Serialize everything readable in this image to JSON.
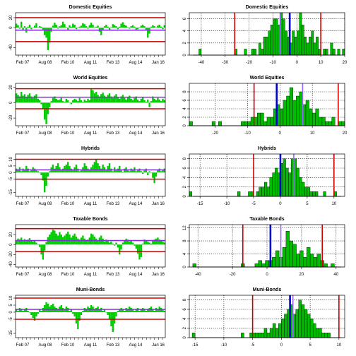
{
  "chart_data": [
    {
      "type": "bar",
      "panel": "timeseries",
      "title": "Domestic Equities",
      "x_tick_labels": [
        "Feb 07",
        "Aug 08",
        "Feb 10",
        "Aug 11",
        "Feb 13",
        "Aug 14",
        "Jan 16"
      ],
      "y_tick_labels": [
        "20",
        "0",
        "-40"
      ],
      "ylim": [
        -55,
        30
      ],
      "horizontal_lines": [
        {
          "y": 20,
          "color": "#cc0000"
        },
        {
          "y": -28,
          "color": "#cc0000"
        },
        {
          "y": -5,
          "color": "#8a2be2"
        }
      ],
      "bar_color": "#00cc00",
      "values": [
        8,
        5,
        -2,
        12,
        -5,
        3,
        -10,
        2,
        6,
        -3,
        0,
        4,
        9,
        -1,
        3,
        2,
        -6,
        -15,
        -20,
        -45,
        -30,
        -8,
        4,
        10,
        6,
        -2,
        3,
        5,
        12,
        7,
        1,
        -4,
        5,
        2,
        8,
        6,
        -3,
        -1,
        2,
        4,
        9,
        7,
        3,
        -2,
        5,
        10,
        6,
        -1,
        2,
        4,
        -8,
        -15,
        -5,
        3,
        6,
        2,
        -4,
        1,
        7,
        5,
        3,
        -3,
        2,
        8,
        11,
        6,
        4,
        1,
        -2,
        3,
        5,
        2,
        -6,
        -3,
        1,
        4,
        6,
        3,
        -5,
        -20,
        -12,
        2,
        5,
        3,
        -1,
        4,
        6,
        2,
        -3,
        5
      ]
    },
    {
      "type": "bar",
      "panel": "histogram",
      "title": "Domestic Equities",
      "x_tick_labels": [
        "-40",
        "-30",
        "-20",
        "-10",
        "0",
        "10",
        "20"
      ],
      "y_tick_labels": [
        "0",
        "2",
        "4",
        "6"
      ],
      "xlim": [
        -45,
        20
      ],
      "ylim": [
        0,
        7
      ],
      "bins_start": -45,
      "bin_width": 1,
      "counts": [
        0,
        0,
        0,
        0,
        1,
        0,
        0,
        0,
        0,
        0,
        0,
        0,
        0,
        0,
        0,
        0,
        0,
        0,
        0,
        1,
        0,
        0,
        0,
        1,
        0,
        0,
        1,
        1,
        0,
        2,
        1,
        3,
        3,
        4,
        5,
        6,
        6,
        5,
        7,
        6,
        4,
        3,
        2,
        4,
        3,
        4,
        7,
        5,
        3,
        2,
        3,
        4,
        2,
        3,
        1,
        0,
        1,
        1,
        0,
        2,
        1,
        0,
        1,
        0,
        1
      ],
      "vlines": [
        {
          "x": -26,
          "color": "#cc0000"
        },
        {
          "x": 10,
          "color": "#cc0000"
        },
        {
          "x": -7,
          "color": "#9966ff"
        },
        {
          "x": -3,
          "color": "#0000cc"
        }
      ]
    },
    {
      "type": "bar",
      "panel": "timeseries",
      "title": "World Equities",
      "x_tick_labels": [
        "Feb 07",
        "Aug 08",
        "Feb 10",
        "Aug 11",
        "Feb 13",
        "Aug 14",
        "Jan 16"
      ],
      "y_tick_labels": [
        "20",
        "0",
        "-20"
      ],
      "ylim": [
        -30,
        25
      ],
      "horizontal_lines": [
        {
          "y": 18,
          "color": "#cc0000"
        },
        {
          "y": -8,
          "color": "#cc0000"
        },
        {
          "y": 7,
          "color": "#8a2be2"
        }
      ],
      "bar_color": "#00cc00",
      "values": [
        12,
        10,
        8,
        14,
        9,
        11,
        7,
        10,
        12,
        8,
        6,
        9,
        11,
        5,
        3,
        -2,
        -8,
        -22,
        -28,
        -15,
        -6,
        2,
        6,
        8,
        5,
        3,
        4,
        6,
        2,
        1,
        5,
        3,
        0,
        -2,
        3,
        5,
        4,
        2,
        6,
        3,
        1,
        4,
        2,
        5,
        3,
        18,
        16,
        12,
        14,
        10,
        8,
        11,
        13,
        9,
        7,
        10,
        12,
        8,
        6,
        9,
        11,
        7,
        5,
        8,
        10,
        6,
        4,
        7,
        9,
        5,
        3,
        6,
        8,
        4,
        2,
        5,
        7,
        3,
        1,
        4,
        -6,
        2,
        8,
        5,
        3,
        6,
        4,
        2,
        5,
        3
      ]
    },
    {
      "type": "bar",
      "panel": "histogram",
      "title": "World Equities",
      "x_tick_labels": [
        "-20",
        "-10",
        "0",
        "10",
        "20"
      ],
      "y_tick_labels": [
        "0",
        "2",
        "4",
        "6",
        "8"
      ],
      "xlim": [
        -28,
        20
      ],
      "ylim": [
        0,
        10
      ],
      "bins_start": -28,
      "bin_width": 1,
      "counts": [
        1,
        0,
        0,
        0,
        0,
        0,
        0,
        1,
        0,
        1,
        0,
        0,
        0,
        0,
        0,
        0,
        1,
        1,
        1,
        2,
        2,
        3,
        3,
        1,
        2,
        2,
        4,
        5,
        4,
        6,
        7,
        9,
        6,
        7,
        8,
        5,
        6,
        4,
        3,
        4,
        2,
        2,
        1,
        1,
        2,
        0,
        1,
        1
      ],
      "vlines": [
        {
          "x": -8,
          "color": "#cc0000"
        },
        {
          "x": 18,
          "color": "#cc0000"
        },
        {
          "x": 7,
          "color": "#9966ff"
        },
        {
          "x": -1,
          "color": "#0000cc"
        }
      ]
    },
    {
      "type": "bar",
      "panel": "timeseries",
      "title": "Hybrids",
      "x_tick_labels": [
        "Feb 07",
        "Aug 08",
        "Feb 10",
        "Aug 11",
        "Feb 13",
        "Aug 14",
        "Jan 16"
      ],
      "y_tick_labels": [
        "10",
        "5",
        "0",
        "-5",
        "-15"
      ],
      "ylim": [
        -18,
        14
      ],
      "horizontal_lines": [
        {
          "y": 10,
          "color": "#cc0000"
        },
        {
          "y": -5,
          "color": "#cc0000"
        },
        {
          "y": 2,
          "color": "#8a2be2"
        }
      ],
      "bar_color": "#00cc00",
      "values": [
        3,
        2,
        4,
        1,
        3,
        2,
        5,
        3,
        1,
        2,
        4,
        3,
        2,
        1,
        0,
        -2,
        -6,
        -15,
        -10,
        -3,
        1,
        4,
        6,
        3,
        5,
        7,
        4,
        2,
        3,
        5,
        6,
        8,
        5,
        3,
        2,
        4,
        6,
        3,
        1,
        2,
        4,
        7,
        5,
        3,
        2,
        4,
        6,
        8,
        10,
        7,
        5,
        3,
        6,
        4,
        2,
        5,
        7,
        3,
        1,
        4,
        2,
        3,
        5,
        2,
        0,
        3,
        4,
        2,
        1,
        3,
        2,
        4,
        1,
        2,
        3,
        1,
        -1,
        2,
        3,
        -2,
        1,
        0,
        -4,
        -8,
        -3,
        2,
        3,
        1,
        2,
        3
      ]
    },
    {
      "type": "bar",
      "panel": "histogram",
      "title": "Hybrids",
      "x_tick_labels": [
        "-15",
        "-10",
        "-5",
        "0",
        "5",
        "10"
      ],
      "y_tick_labels": [
        "0",
        "2",
        "4",
        "6",
        "8"
      ],
      "xlim": [
        -17,
        12
      ],
      "ylim": [
        0,
        9
      ],
      "bins_start": -17,
      "bin_width": 0.5,
      "counts": [
        1,
        0,
        0,
        0,
        0,
        0,
        0,
        0,
        0,
        0,
        0,
        0,
        0,
        0,
        0,
        0,
        0,
        0,
        1,
        0,
        0,
        0,
        1,
        1,
        0,
        1,
        2,
        2,
        3,
        2,
        4,
        5,
        6,
        5,
        7,
        8,
        6,
        5,
        8,
        8,
        6,
        4,
        3,
        2,
        2,
        1,
        1,
        1,
        0,
        0,
        1,
        0,
        0,
        0,
        1,
        0,
        0,
        0
      ],
      "vlines": [
        {
          "x": -5,
          "color": "#cc0000"
        },
        {
          "x": 10,
          "color": "#cc0000"
        },
        {
          "x": 2.5,
          "color": "#9966ff"
        },
        {
          "x": 0,
          "color": "#0000cc"
        }
      ]
    },
    {
      "type": "bar",
      "panel": "timeseries",
      "title": "Taxable Bonds",
      "x_tick_labels": [
        "Feb 07",
        "Aug 08",
        "Feb 10",
        "Aug 11",
        "Feb 13",
        "Aug 14",
        "Jan 16"
      ],
      "y_tick_labels": [
        "20",
        "0",
        "-20",
        "-40"
      ],
      "ylim": [
        -45,
        40
      ],
      "horizontal_lines": [
        {
          "y": 32,
          "color": "#cc0000"
        },
        {
          "y": -14,
          "color": "#cc0000"
        },
        {
          "y": 8,
          "color": "#8a2be2"
        }
      ],
      "bar_color": "#00cc00",
      "values": [
        8,
        12,
        10,
        14,
        9,
        11,
        7,
        10,
        13,
        8,
        6,
        9,
        4,
        0,
        -5,
        -20,
        -30,
        -12,
        5,
        15,
        20,
        25,
        30,
        28,
        22,
        18,
        25,
        20,
        15,
        18,
        22,
        26,
        20,
        14,
        18,
        22,
        16,
        12,
        10,
        14,
        18,
        12,
        8,
        10,
        14,
        22,
        20,
        16,
        12,
        8,
        14,
        18,
        12,
        6,
        10,
        8,
        4,
        6,
        2,
        -2,
        4,
        -6,
        -20,
        -10,
        4,
        8,
        12,
        10,
        6,
        8,
        4,
        -2,
        -8,
        -18,
        -30,
        -25,
        2,
        10,
        8,
        6,
        4,
        2,
        8,
        10,
        12,
        14,
        10,
        8,
        6,
        4
      ]
    },
    {
      "type": "bar",
      "panel": "histogram",
      "title": "Taxable Bonds",
      "x_tick_labels": [
        "-40",
        "-20",
        "0",
        "20",
        "40"
      ],
      "y_tick_labels": [
        "0",
        "4",
        "8",
        "12"
      ],
      "xlim": [
        -45,
        45
      ],
      "ylim": [
        0,
        13
      ],
      "bins_start": -45,
      "bin_width": 2,
      "counts": [
        0,
        1,
        0,
        0,
        0,
        0,
        0,
        0,
        0,
        0,
        0,
        0,
        0,
        0,
        0,
        1,
        0,
        0,
        0,
        1,
        2,
        1,
        2,
        2,
        3,
        5,
        3,
        6,
        11,
        8,
        7,
        4,
        5,
        3,
        6,
        4,
        3,
        4,
        2,
        1,
        0,
        1,
        0,
        0,
        0
      ],
      "vlines": [
        {
          "x": -14,
          "color": "#cc0000"
        },
        {
          "x": 32,
          "color": "#cc0000"
        },
        {
          "x": 8,
          "color": "#9966ff"
        },
        {
          "x": 2,
          "color": "#0000cc"
        }
      ]
    },
    {
      "type": "bar",
      "panel": "timeseries",
      "title": "Muni-Bonds",
      "x_tick_labels": [
        "Feb 07",
        "Aug 08",
        "Feb 10",
        "Aug 11",
        "Feb 13",
        "Aug 14",
        "Jan 16"
      ],
      "y_tick_labels": [
        "10",
        "5",
        "0",
        "-5",
        "-15"
      ],
      "ylim": [
        -18,
        12
      ],
      "horizontal_lines": [
        {
          "y": 10,
          "color": "#cc0000"
        },
        {
          "y": -5,
          "color": "#cc0000"
        },
        {
          "y": 2,
          "color": "#8a2be2"
        }
      ],
      "bar_color": "#00cc00",
      "values": [
        2,
        1,
        3,
        2,
        1,
        2,
        3,
        1,
        0,
        -2,
        -4,
        -6,
        -3,
        -1,
        2,
        1,
        3,
        5,
        7,
        6,
        4,
        5,
        6,
        4,
        3,
        2,
        4,
        5,
        3,
        2,
        4,
        3,
        1,
        2,
        -1,
        -3,
        -8,
        -12,
        -6,
        -2,
        1,
        3,
        2,
        4,
        3,
        5,
        4,
        2,
        3,
        4,
        2,
        3,
        1,
        2,
        0,
        -2,
        -5,
        -10,
        -14,
        -8,
        -3,
        1,
        2,
        3,
        2,
        1,
        3,
        2,
        4,
        3,
        2,
        1,
        2,
        3,
        1,
        2,
        3,
        2,
        1,
        2,
        3,
        4,
        2,
        1,
        3,
        2,
        4,
        3,
        2,
        1
      ]
    },
    {
      "type": "bar",
      "panel": "histogram",
      "title": "Muni-Bonds",
      "x_tick_labels": [
        "-15",
        "-10",
        "-5",
        "0",
        "5",
        "10"
      ],
      "y_tick_labels": [
        "0",
        "2",
        "4",
        "6",
        "8"
      ],
      "xlim": [
        -16,
        11
      ],
      "ylim": [
        0,
        9
      ],
      "bins_start": -16,
      "bin_width": 0.5,
      "counts": [
        0,
        1,
        0,
        0,
        0,
        0,
        0,
        0,
        0,
        0,
        0,
        0,
        0,
        0,
        0,
        0,
        0,
        0,
        1,
        0,
        0,
        1,
        1,
        1,
        1,
        1,
        2,
        1,
        2,
        3,
        2,
        3,
        4,
        5,
        6,
        7,
        5,
        6,
        8,
        7,
        6,
        5,
        4,
        3,
        2,
        2,
        1,
        1,
        1,
        0,
        0,
        0,
        0,
        0
      ],
      "vlines": [
        {
          "x": -5,
          "color": "#cc0000"
        },
        {
          "x": 10,
          "color": "#cc0000"
        },
        {
          "x": 2,
          "color": "#9966ff"
        },
        {
          "x": 1.5,
          "color": "#0000cc"
        }
      ]
    }
  ]
}
